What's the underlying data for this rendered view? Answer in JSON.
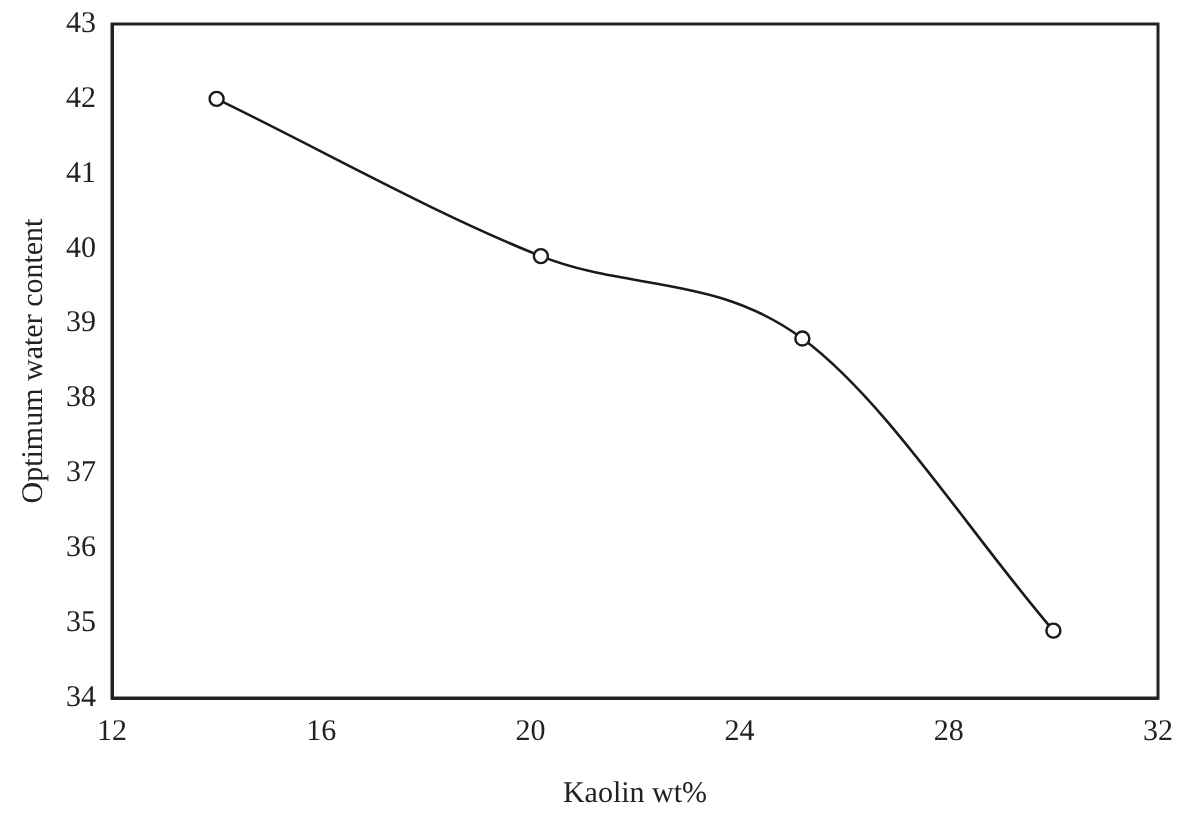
{
  "chart_data": {
    "type": "line",
    "xlabel": "Kaolin wt%",
    "ylabel": "Optimum water content",
    "x": [
      14,
      20.2,
      25.2,
      30
    ],
    "series": [
      {
        "color": "#1a1a1a",
        "values": [
          42,
          39.9,
          38.8,
          34.9
        ]
      }
    ],
    "xlim": [
      12,
      32
    ],
    "xticks": [
      12,
      16,
      20,
      24,
      28,
      32
    ],
    "ylim": [
      34,
      43
    ],
    "yticks": [
      34,
      35,
      36,
      37,
      38,
      39,
      40,
      41,
      42,
      43
    ],
    "grid": false,
    "legend": false,
    "marker": "circle",
    "line_style": "solid"
  }
}
